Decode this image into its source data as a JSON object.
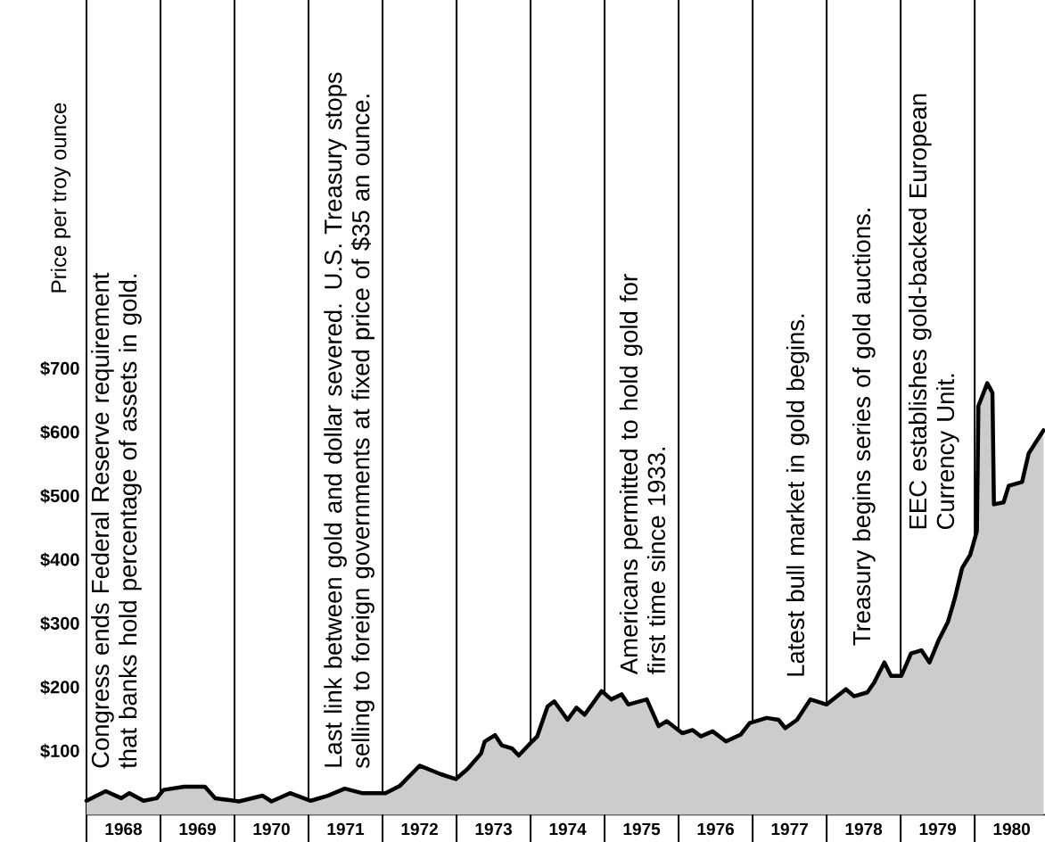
{
  "chart_data": {
    "type": "area",
    "ylabel": "Price per troy ounce",
    "color": "#000000",
    "x": [
      1968,
      1968.26,
      1968.47,
      1968.58,
      1968.77,
      1968.95,
      1969.04,
      1969.32,
      1969.6,
      1969.74,
      1970.06,
      1970.38,
      1970.5,
      1970.75,
      1971.03,
      1971.26,
      1971.49,
      1971.72,
      1972.04,
      1972.23,
      1972.5,
      1972.78,
      1972.99,
      1973.15,
      1973.33,
      1973.38,
      1973.52,
      1973.61,
      1973.75,
      1973.84,
      1974.02,
      1974.09,
      1974.23,
      1974.32,
      1974.5,
      1974.62,
      1974.73,
      1974.96,
      1975.09,
      1975.23,
      1975.32,
      1975.57,
      1975.73,
      1975.84,
      1976.05,
      1976.19,
      1976.3,
      1976.46,
      1976.64,
      1976.84,
      1976.96,
      1977.19,
      1977.35,
      1977.44,
      1977.6,
      1977.78,
      1978.0,
      1978.26,
      1978.37,
      1978.55,
      1978.64,
      1978.78,
      1978.87,
      1979.01,
      1979.14,
      1979.28,
      1979.39,
      1979.51,
      1979.64,
      1979.73,
      1979.83,
      1979.94,
      1980.03,
      1980.05,
      1980.17,
      1980.24,
      1980.26,
      1980.39,
      1980.46,
      1980.64,
      1980.73,
      1980.93
    ],
    "values": [
      22,
      37,
      26,
      34,
      22,
      26,
      39,
      44,
      44,
      26,
      21,
      30,
      21,
      34,
      22,
      30,
      41,
      34,
      34,
      45,
      77,
      64,
      56,
      72,
      96,
      115,
      125,
      109,
      104,
      93,
      115,
      123,
      170,
      178,
      149,
      168,
      157,
      194,
      181,
      189,
      173,
      181,
      139,
      147,
      128,
      133,
      123,
      131,
      115,
      126,
      144,
      152,
      149,
      136,
      149,
      181,
      173,
      197,
      186,
      192,
      207,
      239,
      218,
      218,
      253,
      258,
      239,
      273,
      303,
      339,
      387,
      408,
      445,
      641,
      677,
      662,
      487,
      490,
      516,
      522,
      567,
      603
    ],
    "xlim": [
      1968,
      1980.95
    ],
    "ylim": [
      0,
      1278
    ],
    "xticks": [
      {
        "value": 1968.5,
        "label": "1968"
      },
      {
        "value": 1969.5,
        "label": "1969"
      },
      {
        "value": 1970.5,
        "label": "1970"
      },
      {
        "value": 1971.5,
        "label": "1971"
      },
      {
        "value": 1972.5,
        "label": "1972"
      },
      {
        "value": 1973.5,
        "label": "1973"
      },
      {
        "value": 1974.5,
        "label": "1974"
      },
      {
        "value": 1975.5,
        "label": "1975"
      },
      {
        "value": 1976.5,
        "label": "1976"
      },
      {
        "value": 1977.5,
        "label": "1977"
      },
      {
        "value": 1978.5,
        "label": "1978"
      },
      {
        "value": 1979.5,
        "label": "1979"
      },
      {
        "value": 1980.5,
        "label": "1980"
      }
    ],
    "yticks": [
      {
        "value": 100,
        "label": "$100"
      },
      {
        "value": 200,
        "label": "$200"
      },
      {
        "value": 300,
        "label": "$300"
      },
      {
        "value": 400,
        "label": "$400"
      },
      {
        "value": 500,
        "label": "$500"
      },
      {
        "value": 600,
        "label": "$600"
      },
      {
        "value": 700,
        "label": "$700"
      }
    ],
    "ref_lines": [
      {
        "axis": "x",
        "value": 1968,
        "color": "#000000"
      },
      {
        "axis": "x",
        "value": 1969,
        "color": "#000000"
      },
      {
        "axis": "x",
        "value": 1970,
        "color": "#000000"
      },
      {
        "axis": "x",
        "value": 1971,
        "color": "#000000"
      },
      {
        "axis": "x",
        "value": 1972,
        "color": "#000000"
      },
      {
        "axis": "x",
        "value": 1973,
        "color": "#000000"
      },
      {
        "axis": "x",
        "value": 1974,
        "color": "#000000"
      },
      {
        "axis": "x",
        "value": 1975,
        "color": "#000000"
      },
      {
        "axis": "x",
        "value": 1976,
        "color": "#000000"
      },
      {
        "axis": "x",
        "value": 1977,
        "color": "#000000"
      },
      {
        "axis": "x",
        "value": 1978,
        "color": "#000000"
      },
      {
        "axis": "x",
        "value": 1979,
        "color": "#000000"
      },
      {
        "axis": "x",
        "value": 1980,
        "color": "#000000"
      }
    ],
    "annotations": [
      "Congress ends Federal Reserve requirement that banks hold percentage of assets in gold.",
      "Last link between gold and dollar severed. U.S. Treasury stops selling to foreign governments at fixed price of $35 an ounce.",
      "Americans permitted to hold gold for first time since 1933.",
      "Latest bull market in gold begins.",
      "Treasury begins series of gold auctions.",
      "EEC establishes gold-backed European Currency Unit."
    ]
  }
}
